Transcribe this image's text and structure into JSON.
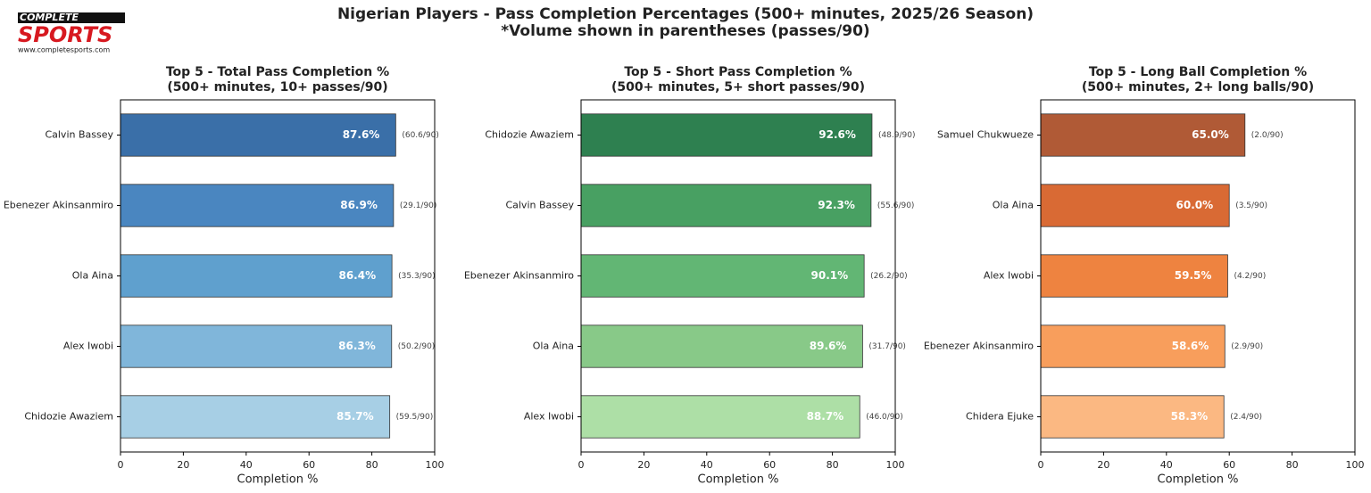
{
  "header": {
    "title": "Nigerian Players - Pass Completion Percentages (500+ minutes, 2025/26 Season)",
    "subtitle": "*Volume shown in parentheses (passes/90)"
  },
  "logo": {
    "top": "COMPLETE",
    "main": "SPORTS",
    "url": "www.completesports.com"
  },
  "chart_data": [
    {
      "type": "bar",
      "orientation": "horizontal",
      "title": "Top 5 - Total Pass Completion %",
      "subtitle": "(500+ minutes, 10+ passes/90)",
      "x_label": "Completion %",
      "categories": [
        "Calvin Bassey",
        "Ebenezer Akinsanmiro",
        "Ola Aina",
        "Alex Iwobi",
        "Chidozie Awaziem"
      ],
      "values": [
        87.6,
        86.9,
        86.4,
        86.3,
        85.7
      ],
      "value_labels": [
        "87.6%",
        "86.9%",
        "86.4%",
        "86.3%",
        "85.7%"
      ],
      "annotations": [
        "(60.6/90)",
        "(29.1/90)",
        "(35.3/90)",
        "(50.2/90)",
        "(59.5/90)"
      ],
      "colors": [
        "#3a6fa8",
        "#4a86c0",
        "#5fa0ce",
        "#80b6da",
        "#a7cfe5"
      ],
      "xlim": [
        0,
        100
      ],
      "xticks": [
        0,
        20,
        40,
        60,
        80,
        100
      ]
    },
    {
      "type": "bar",
      "orientation": "horizontal",
      "title": "Top 5 - Short Pass Completion %",
      "subtitle": "(500+ minutes, 5+ short passes/90)",
      "x_label": "Completion %",
      "categories": [
        "Chidozie Awaziem",
        "Calvin Bassey",
        "Ebenezer Akinsanmiro",
        "Ola Aina",
        "Alex Iwobi"
      ],
      "values": [
        92.6,
        92.3,
        90.1,
        89.6,
        88.7
      ],
      "value_labels": [
        "92.6%",
        "92.3%",
        "90.1%",
        "89.6%",
        "88.7%"
      ],
      "annotations": [
        "(48.9/90)",
        "(55.6/90)",
        "(26.2/90)",
        "(31.7/90)",
        "(46.0/90)"
      ],
      "colors": [
        "#2e8050",
        "#48a062",
        "#62b674",
        "#88c988",
        "#addfa6"
      ],
      "xlim": [
        0,
        100
      ],
      "xticks": [
        0,
        20,
        40,
        60,
        80,
        100
      ]
    },
    {
      "type": "bar",
      "orientation": "horizontal",
      "title": "Top 5 - Long Ball Completion %",
      "subtitle": "(500+ minutes, 2+ long balls/90)",
      "x_label": "Completion %",
      "categories": [
        "Samuel Chukwueze",
        "Ola Aina",
        "Alex Iwobi",
        "Ebenezer Akinsanmiro",
        "Chidera Ejuke"
      ],
      "values": [
        65.0,
        60.0,
        59.5,
        58.6,
        58.3
      ],
      "value_labels": [
        "65.0%",
        "60.0%",
        "59.5%",
        "58.6%",
        "58.3%"
      ],
      "annotations": [
        "(2.0/90)",
        "(3.5/90)",
        "(4.2/90)",
        "(2.9/90)",
        "(2.4/90)"
      ],
      "colors": [
        "#b05a36",
        "#d96a34",
        "#ee8340",
        "#f89e5c",
        "#fbb882"
      ],
      "xlim": [
        0,
        100
      ],
      "xticks": [
        0,
        20,
        40,
        60,
        80,
        100
      ]
    }
  ]
}
